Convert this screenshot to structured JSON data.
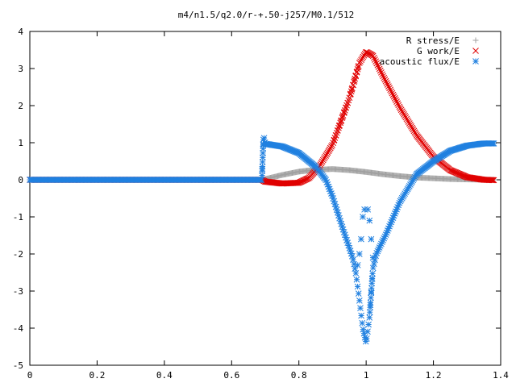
{
  "chart_data": {
    "type": "scatter",
    "title": "m4/n1.5/q2.0/r-+.50-j257/M0.1/512",
    "xlabel": "",
    "ylabel": "",
    "xlim": [
      0,
      1.4
    ],
    "ylim": [
      -5,
      4
    ],
    "x_ticks": [
      "0",
      "0.2",
      "0.4",
      "0.6",
      "0.8",
      "1",
      "1.2",
      "1.4"
    ],
    "y_ticks": [
      "-5",
      "-4",
      "-3",
      "-2",
      "-1",
      "0",
      "1",
      "2",
      "3",
      "4"
    ],
    "grid": false,
    "legend_position": "top-right",
    "series": [
      {
        "name": "R stress/E",
        "marker": "plus",
        "color": "#a0a0a0",
        "x_range": [
          0,
          1.38
        ],
        "points": [
          [
            0,
            0
          ],
          [
            0.69,
            0
          ],
          [
            0.7,
            0.02
          ],
          [
            0.75,
            0.13
          ],
          [
            0.8,
            0.22
          ],
          [
            0.85,
            0.27
          ],
          [
            0.9,
            0.29
          ],
          [
            0.95,
            0.26
          ],
          [
            1.0,
            0.21
          ],
          [
            1.05,
            0.15
          ],
          [
            1.1,
            0.1
          ],
          [
            1.15,
            0.06
          ],
          [
            1.2,
            0.04
          ],
          [
            1.25,
            0.02
          ],
          [
            1.3,
            0.01
          ],
          [
            1.38,
            0.0
          ]
        ]
      },
      {
        "name": "G work/E",
        "marker": "cross",
        "color": "#e00000",
        "x_range": [
          0,
          1.38
        ],
        "points": [
          [
            0,
            0
          ],
          [
            0.69,
            0
          ],
          [
            0.7,
            -0.05
          ],
          [
            0.75,
            -0.1
          ],
          [
            0.8,
            -0.08
          ],
          [
            0.83,
            0.05
          ],
          [
            0.86,
            0.35
          ],
          [
            0.9,
            0.95
          ],
          [
            0.95,
            2.2
          ],
          [
            0.98,
            3.15
          ],
          [
            1.0,
            3.45
          ],
          [
            1.02,
            3.35
          ],
          [
            1.05,
            2.8
          ],
          [
            1.1,
            1.95
          ],
          [
            1.15,
            1.2
          ],
          [
            1.2,
            0.62
          ],
          [
            1.25,
            0.26
          ],
          [
            1.3,
            0.07
          ],
          [
            1.35,
            0.0
          ],
          [
            1.38,
            -0.01
          ]
        ]
      },
      {
        "name": "acoustic flux/E",
        "marker": "star",
        "color": "#2080e0",
        "x_range": [
          0,
          1.38
        ],
        "points": [
          [
            0,
            0
          ],
          [
            0.69,
            0
          ],
          [
            0.695,
            1.2
          ],
          [
            0.7,
            0.97
          ],
          [
            0.75,
            0.9
          ],
          [
            0.8,
            0.72
          ],
          [
            0.85,
            0.35
          ],
          [
            0.88,
            0.0
          ],
          [
            0.9,
            -0.45
          ],
          [
            0.93,
            -1.3
          ],
          [
            0.96,
            -2.1
          ],
          [
            0.97,
            -2.55
          ],
          [
            0.98,
            -3.25
          ],
          [
            0.99,
            -4.0
          ],
          [
            1.0,
            -4.4
          ],
          [
            1.01,
            -3.7
          ],
          [
            1.02,
            -2.4
          ],
          [
            1.03,
            -2.0
          ],
          [
            1.06,
            -1.45
          ],
          [
            1.1,
            -0.6
          ],
          [
            1.15,
            0.15
          ],
          [
            1.2,
            0.5
          ],
          [
            1.25,
            0.78
          ],
          [
            1.3,
            0.92
          ],
          [
            1.35,
            0.98
          ],
          [
            1.38,
            0.98
          ]
        ],
        "isolated_points": [
          [
            0.995,
            -0.8
          ],
          [
            1.005,
            -0.8
          ],
          [
            0.99,
            -1.0
          ],
          [
            1.01,
            -1.1
          ],
          [
            0.985,
            -1.6
          ],
          [
            1.015,
            -1.6
          ],
          [
            0.98,
            -2.0
          ],
          [
            1.02,
            -2.1
          ],
          [
            0.975,
            -2.3
          ]
        ]
      }
    ]
  }
}
